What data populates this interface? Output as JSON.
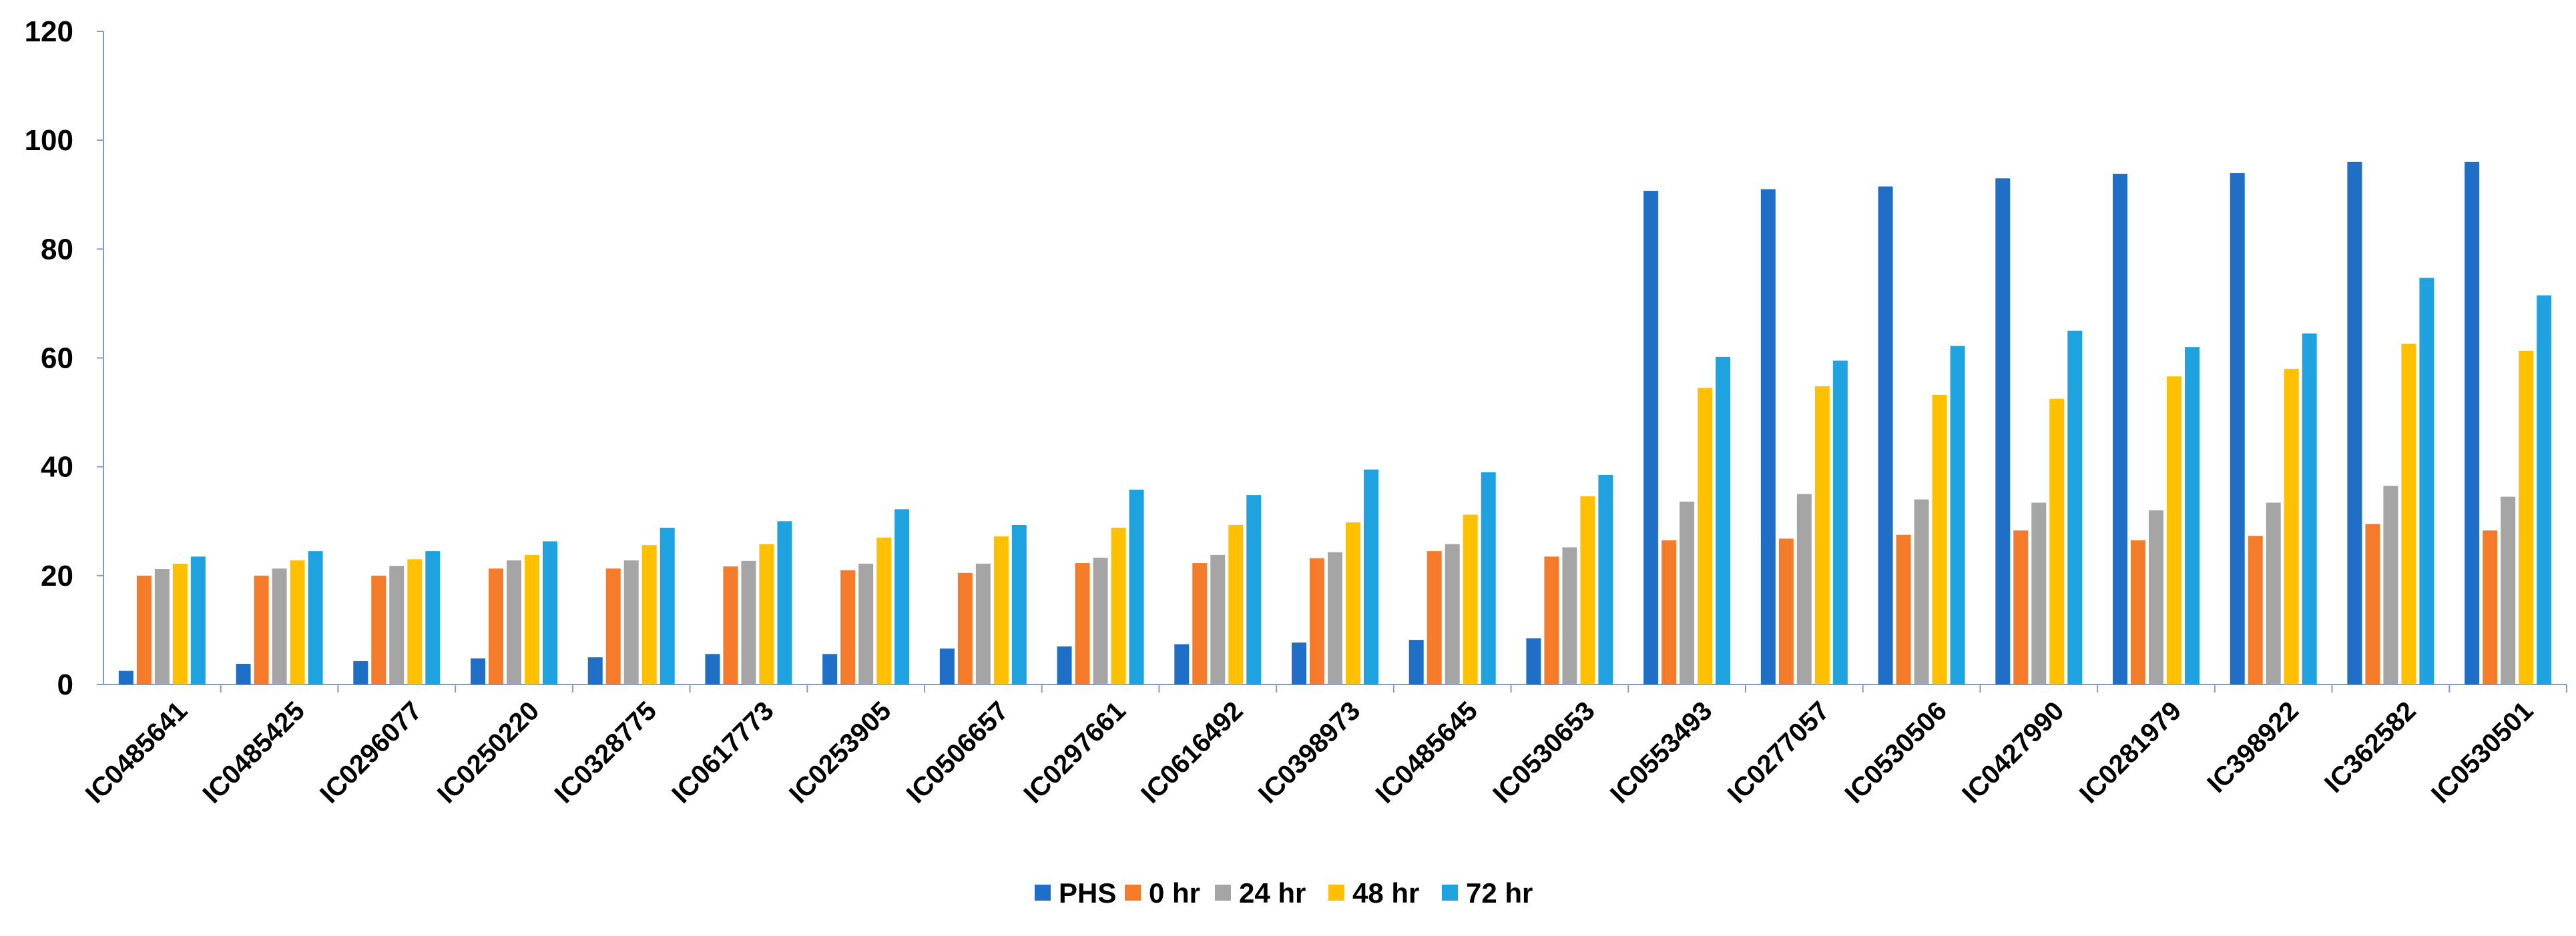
{
  "chart_data": {
    "type": "bar",
    "title": "",
    "xlabel": "",
    "ylabel": "",
    "ylim": [
      0,
      120
    ],
    "yticks": [
      "0",
      "20",
      "40",
      "60",
      "80",
      "100",
      "120"
    ],
    "grid": false,
    "legend_position": "bottom",
    "categories": [
      "IC0485641",
      "IC0485425",
      "IC0296077",
      "IC0250220",
      "IC0328775",
      "IC0617773",
      "IC0253905",
      "IC0506657",
      "IC0297661",
      "IC0616492",
      "IC0398973",
      "IC0485645",
      "IC0530653",
      "IC0553493",
      "IC0277057",
      "IC0530506",
      "IC0427990",
      "IC0281979",
      "IC398922",
      "IC362582",
      "IC0530501"
    ],
    "series": [
      {
        "name": "PHS",
        "color": "#1f6fc6",
        "values": [
          2.5,
          3.8,
          4.3,
          4.8,
          5.0,
          5.6,
          5.6,
          6.6,
          7.0,
          7.4,
          7.7,
          8.2,
          8.5,
          90.7,
          91.0,
          91.5,
          93.0,
          93.8,
          94.0,
          96.0,
          96.0
        ]
      },
      {
        "name": "0 hr",
        "color": "#f47b2a",
        "values": [
          20.0,
          20.0,
          20.0,
          21.3,
          21.3,
          21.7,
          21.0,
          20.5,
          22.3,
          22.3,
          23.2,
          24.5,
          23.5,
          26.5,
          26.8,
          27.5,
          28.3,
          26.5,
          27.3,
          29.5,
          28.3
        ]
      },
      {
        "name": "24 hr",
        "color": "#a5a5a5",
        "values": [
          21.2,
          21.3,
          21.8,
          22.8,
          22.8,
          22.7,
          22.2,
          22.2,
          23.3,
          23.8,
          24.3,
          25.8,
          25.2,
          33.6,
          35.0,
          34.0,
          33.4,
          32.0,
          33.4,
          36.5,
          34.5
        ]
      },
      {
        "name": "48 hr",
        "color": "#ffc000",
        "values": [
          22.2,
          22.8,
          23.0,
          23.8,
          25.6,
          25.8,
          27.0,
          27.2,
          28.8,
          29.3,
          29.8,
          31.2,
          34.6,
          54.5,
          54.8,
          53.2,
          52.5,
          56.6,
          58.0,
          62.6,
          61.3
        ]
      },
      {
        "name": "72 hr",
        "color": "#1fa2e0",
        "values": [
          23.5,
          24.5,
          24.5,
          26.3,
          28.8,
          30.0,
          32.2,
          29.3,
          35.8,
          34.8,
          39.5,
          39.0,
          38.5,
          60.2,
          59.5,
          62.2,
          65.0,
          62.0,
          64.5,
          74.7,
          71.5
        ]
      }
    ]
  }
}
